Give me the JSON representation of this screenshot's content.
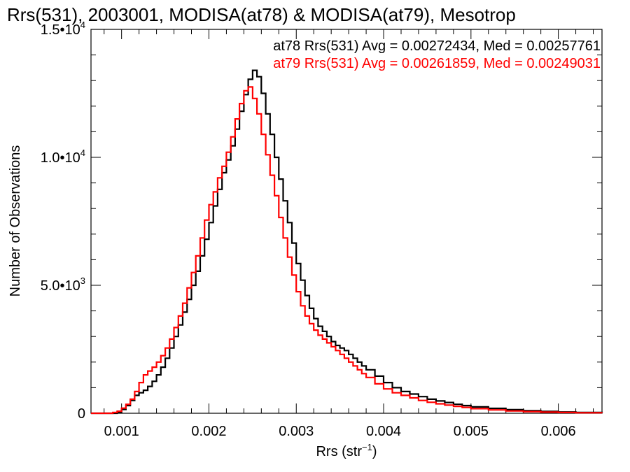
{
  "chart_data": {
    "type": "line",
    "title": "Rrs(531), 2003001, MODISA(at78) & MODISA(at79), Mesotrop",
    "xlabel": "Rrs (str",
    "xlabel_sup": "−1",
    "xlabel_close": ")",
    "ylabel": "Number of Observations",
    "xlim": [
      0.00065,
      0.0065
    ],
    "ylim": [
      0,
      15000
    ],
    "x_ticks": [
      {
        "value": 0.001,
        "label": "0.001"
      },
      {
        "value": 0.002,
        "label": "0.002"
      },
      {
        "value": 0.003,
        "label": "0.003"
      },
      {
        "value": 0.004,
        "label": "0.004"
      },
      {
        "value": 0.005,
        "label": "0.005"
      },
      {
        "value": 0.006,
        "label": "0.006"
      }
    ],
    "y_ticks": [
      {
        "value": 0,
        "mant": "0",
        "exp": ""
      },
      {
        "value": 5000,
        "mant": "5.0•10",
        "exp": "3"
      },
      {
        "value": 10000,
        "mant": "1.0•10",
        "exp": "4"
      },
      {
        "value": 15000,
        "mant": "1.5•10",
        "exp": "4"
      }
    ],
    "grid": false,
    "legend_position": "top-right",
    "series": [
      {
        "name": "at78",
        "label": "at78 Rrs(531) Avg = 0.00272434, Med = 0.00257761",
        "color": "#000000",
        "x": [
          0.00065,
          0.0009,
          0.00095,
          0.001,
          0.00105,
          0.0011,
          0.00115,
          0.0012,
          0.00125,
          0.0013,
          0.00135,
          0.0014,
          0.00145,
          0.0015,
          0.00155,
          0.0016,
          0.00165,
          0.0017,
          0.00175,
          0.0018,
          0.00185,
          0.0019,
          0.00195,
          0.002,
          0.00205,
          0.0021,
          0.00215,
          0.0022,
          0.00225,
          0.0023,
          0.00235,
          0.0024,
          0.00245,
          0.0025,
          0.00255,
          0.0026,
          0.00265,
          0.0027,
          0.00275,
          0.0028,
          0.00285,
          0.0029,
          0.00295,
          0.003,
          0.00305,
          0.0031,
          0.00315,
          0.0032,
          0.00325,
          0.0033,
          0.00335,
          0.0034,
          0.00345,
          0.0035,
          0.00355,
          0.0036,
          0.00365,
          0.0037,
          0.00375,
          0.0038,
          0.0039,
          0.004,
          0.0041,
          0.0042,
          0.0043,
          0.0044,
          0.0045,
          0.0046,
          0.0047,
          0.0048,
          0.0049,
          0.005,
          0.0052,
          0.0054,
          0.0056,
          0.0058,
          0.006,
          0.0062,
          0.0065
        ],
        "y": [
          0,
          0,
          40,
          150,
          300,
          500,
          700,
          800,
          900,
          1050,
          1250,
          1500,
          1800,
          2150,
          2550,
          3000,
          3450,
          3950,
          4450,
          5000,
          5550,
          6150,
          6800,
          7450,
          8100,
          8750,
          9400,
          9900,
          10450,
          11100,
          11800,
          12450,
          13050,
          13400,
          13150,
          12500,
          11700,
          10900,
          10000,
          9150,
          8300,
          7450,
          6650,
          5850,
          5200,
          4600,
          4100,
          3700,
          3400,
          3200,
          3000,
          2800,
          2650,
          2550,
          2450,
          2300,
          2150,
          2000,
          1850,
          1700,
          1450,
          1200,
          1000,
          850,
          750,
          650,
          550,
          480,
          420,
          350,
          300,
          250,
          190,
          140,
          100,
          70,
          50,
          30,
          20
        ]
      },
      {
        "name": "at79",
        "label": "at79 Rrs(531) Avg = 0.00261859, Med = 0.00249031",
        "color": "#ff0000",
        "x": [
          0.00065,
          0.00085,
          0.0009,
          0.00095,
          0.001,
          0.00105,
          0.0011,
          0.00115,
          0.0012,
          0.00125,
          0.0013,
          0.00135,
          0.0014,
          0.00145,
          0.0015,
          0.00155,
          0.0016,
          0.00165,
          0.0017,
          0.00175,
          0.0018,
          0.00185,
          0.0019,
          0.00195,
          0.002,
          0.00205,
          0.0021,
          0.00215,
          0.0022,
          0.00225,
          0.0023,
          0.00235,
          0.0024,
          0.00245,
          0.0025,
          0.00255,
          0.0026,
          0.00265,
          0.0027,
          0.00275,
          0.0028,
          0.00285,
          0.0029,
          0.00295,
          0.003,
          0.00305,
          0.0031,
          0.00315,
          0.0032,
          0.00325,
          0.0033,
          0.00335,
          0.0034,
          0.00345,
          0.0035,
          0.00355,
          0.0036,
          0.00365,
          0.0037,
          0.00375,
          0.0038,
          0.0039,
          0.004,
          0.0041,
          0.0042,
          0.0043,
          0.0044,
          0.0045,
          0.0046,
          0.0047,
          0.0048,
          0.0049,
          0.005,
          0.0052,
          0.0054,
          0.0056,
          0.0058,
          0.006,
          0.0062,
          0.0065
        ],
        "y": [
          0,
          0,
          30,
          80,
          200,
          350,
          550,
          850,
          1200,
          1500,
          1650,
          1800,
          2000,
          2250,
          2550,
          2900,
          3350,
          3800,
          4300,
          4900,
          5500,
          6150,
          6850,
          7550,
          8150,
          8650,
          9200,
          9650,
          10200,
          10800,
          11500,
          12100,
          12600,
          12750,
          12300,
          11700,
          10900,
          10100,
          9300,
          8500,
          7650,
          6850,
          6100,
          5400,
          4750,
          4200,
          3800,
          3500,
          3250,
          3050,
          2900,
          2750,
          2600,
          2450,
          2300,
          2150,
          2000,
          1850,
          1700,
          1550,
          1400,
          1150,
          950,
          800,
          700,
          600,
          500,
          430,
          370,
          320,
          270,
          230,
          180,
          130,
          90,
          65,
          45,
          30,
          20,
          15
        ]
      }
    ]
  }
}
